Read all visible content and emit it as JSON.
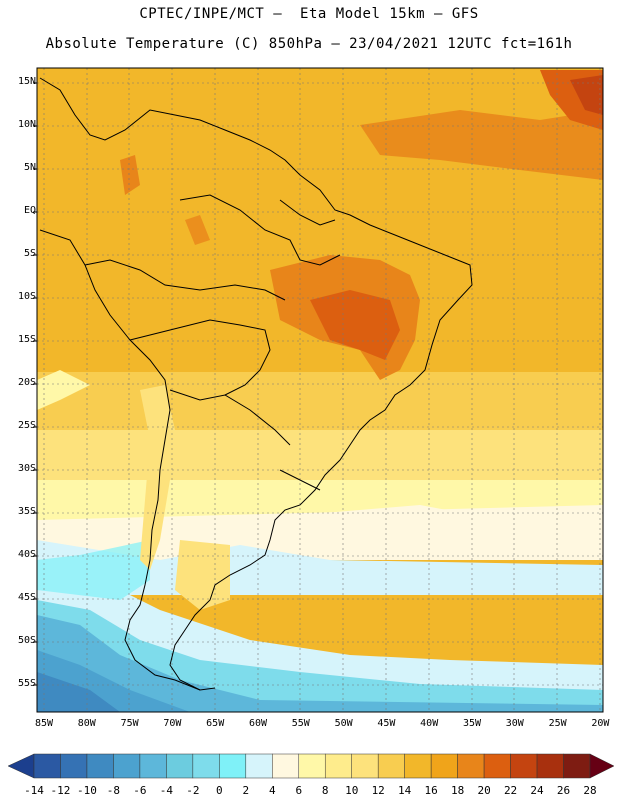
{
  "header": {
    "line1": "CPTEC/INPE/MCT –  Eta Model 15km – GFS",
    "line2": "Absolute Temperature (C) 850hPa – 23/04/2021 12UTC fct=161h"
  },
  "axes": {
    "lat_labels": [
      "15N",
      "10N",
      "5N",
      "EQ",
      "5S",
      "10S",
      "15S",
      "20S",
      "25S",
      "30S",
      "35S",
      "40S",
      "45S",
      "50S",
      "55S"
    ],
    "lon_labels": [
      "85W",
      "80W",
      "75W",
      "70W",
      "65W",
      "60W",
      "55W",
      "50W",
      "45W",
      "40W",
      "35W",
      "30W",
      "25W",
      "20W"
    ]
  },
  "colorbar": {
    "labels": [
      "-14",
      "-12",
      "-10",
      "-8",
      "-6",
      "-4",
      "-2",
      "0",
      "2",
      "4",
      "6",
      "8",
      "10",
      "12",
      "14",
      "16",
      "18",
      "20",
      "22",
      "24",
      "26",
      "28"
    ],
    "colors": [
      "#1c3f8e",
      "#2b59a3",
      "#3572b4",
      "#3f8ac1",
      "#4ca2cf",
      "#5db7da",
      "#6cccdf",
      "#7edceb",
      "#7ff1f8",
      "#d6f4fb",
      "#fff8e0",
      "#fff8a8",
      "#feec8c",
      "#fde27c",
      "#f8cd50",
      "#f2b72a",
      "#f0a41a",
      "#e8851a",
      "#dc5f10",
      "#c44410",
      "#a8300e",
      "#7e1c12",
      "#660014"
    ]
  }
}
